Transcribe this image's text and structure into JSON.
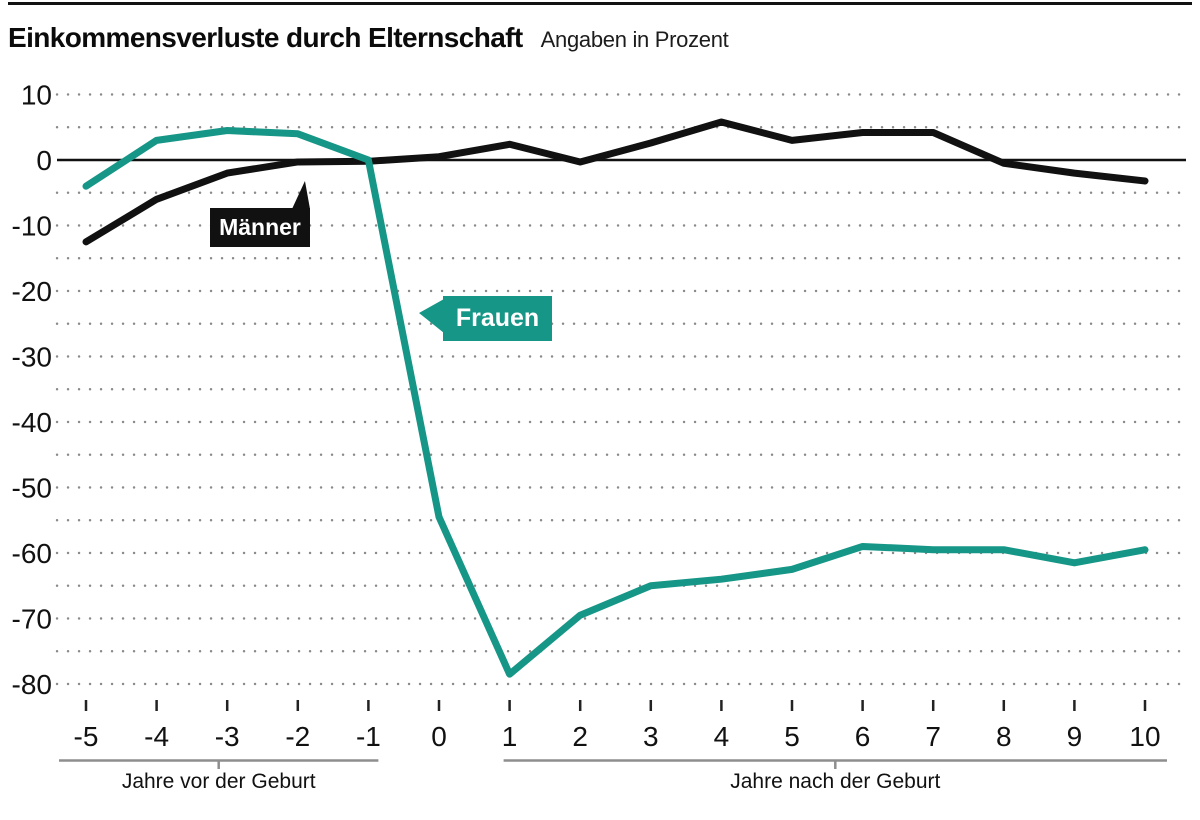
{
  "page": {
    "title": "Einkommensverluste durch Elternschaft",
    "subtitle": "Angaben in Prozent"
  },
  "chart_data": {
    "type": "line",
    "title": "Einkommensverluste durch Elternschaft",
    "subtitle": "Angaben in Prozent",
    "unit": "Prozent",
    "x": [
      -5,
      -4,
      -3,
      -2,
      -1,
      0,
      1,
      2,
      3,
      4,
      5,
      6,
      7,
      8,
      9,
      10
    ],
    "series": [
      {
        "name": "Männer",
        "color": "#111111",
        "values": [
          -12.5,
          -6,
          -2,
          -0.3,
          -0.2,
          0.5,
          2.4,
          -0.3,
          2.6,
          5.8,
          3,
          4.2,
          4.2,
          -0.5,
          -2,
          -3.2
        ]
      },
      {
        "name": "Frauen",
        "color": "#169686",
        "values": [
          -4,
          3,
          4.5,
          4,
          0,
          -54.5,
          -78.5,
          -69.5,
          -65,
          -64,
          -62.5,
          -59,
          -59.5,
          -59.5,
          -61.5,
          -59.5
        ]
      }
    ],
    "ylim": [
      -80,
      10
    ],
    "y_ticks_labeled": [
      10,
      0,
      -10,
      -20,
      -30,
      -40,
      -50,
      -60,
      -70,
      -80
    ],
    "grid_step": 5,
    "grid_style": "dotted horizontal",
    "zero_line": true,
    "legend_position": "callouts on lines",
    "x_group_labels": [
      {
        "label": "Jahre vor der Geburt",
        "from": -5,
        "to": -1
      },
      {
        "label": "Jahre nach der Geburt",
        "from": 1,
        "to": 10
      }
    ]
  },
  "colors": {
    "maenner_line": "#111111",
    "frauen_line": "#169686",
    "grid_dot": "#8a8a8a",
    "bracket": "#8e8e8e",
    "text": "#111111"
  }
}
